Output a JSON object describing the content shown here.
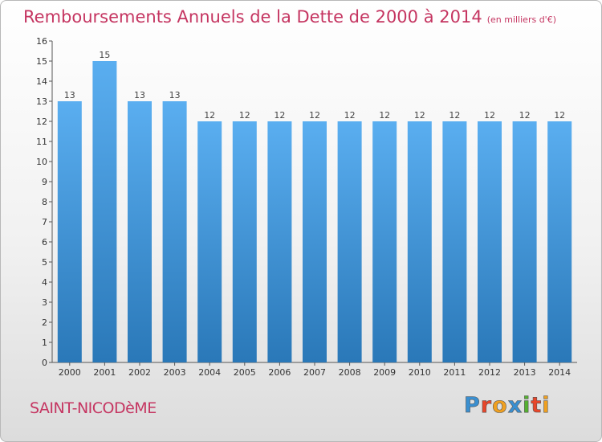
{
  "header": {
    "title": "Remboursements Annuels de la Dette de 2000 à 2014",
    "unit": "(en milliers d'€)"
  },
  "footer": {
    "commune": "SAINT-NICODèME",
    "logo_letters": [
      "P",
      "r",
      "o",
      "x",
      "i",
      "t",
      "i"
    ],
    "logo_colors": [
      "#3a8fd0",
      "#e8462a",
      "#f0a020",
      "#3a8fd0",
      "#55b030",
      "#e8462a",
      "#f0a020"
    ]
  },
  "chart_data": {
    "type": "bar",
    "title": "Remboursements Annuels de la Dette de 2000 à 2014",
    "xlabel": "",
    "ylabel": "",
    "categories": [
      "2000",
      "2001",
      "2002",
      "2003",
      "2004",
      "2005",
      "2006",
      "2007",
      "2008",
      "2009",
      "2010",
      "2011",
      "2012",
      "2013",
      "2014"
    ],
    "values": [
      13,
      15,
      13,
      13,
      12,
      12,
      12,
      12,
      12,
      12,
      12,
      12,
      12,
      12,
      12
    ],
    "ylim": [
      0,
      16
    ],
    "yticks": [
      0,
      1,
      2,
      3,
      4,
      5,
      6,
      7,
      8,
      9,
      10,
      11,
      12,
      13,
      14,
      15,
      16
    ],
    "grid": false,
    "bar_color_top": "#5aaef0",
    "bar_color_bottom": "#2a78b8"
  }
}
